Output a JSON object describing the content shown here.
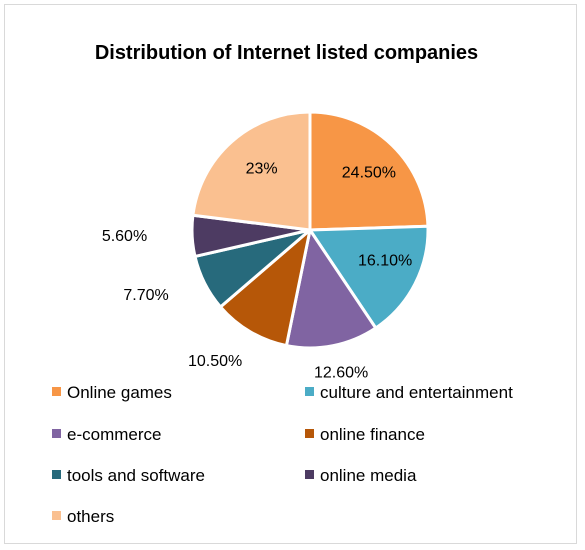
{
  "chart_data": {
    "type": "pie",
    "title": "Distribution of Internet listed companies",
    "slices": [
      {
        "name": "Online games",
        "value": 24.5,
        "label": "24.50%",
        "color": "#F79646"
      },
      {
        "name": "culture and entertainment",
        "value": 16.1,
        "label": "16.10%",
        "color": "#4BACC6"
      },
      {
        "name": "e-commerce",
        "value": 12.6,
        "label": "12.60%",
        "color": "#8064A2"
      },
      {
        "name": "online finance",
        "value": 10.5,
        "label": "10.50%",
        "color": "#B65708"
      },
      {
        "name": "tools and software",
        "value": 7.7,
        "label": "7.70%",
        "color": "#276A7C"
      },
      {
        "name": "online media",
        "value": 5.6,
        "label": "5.60%",
        "color": "#4D3B62"
      },
      {
        "name": "others",
        "value": 23,
        "label": "23%",
        "color": "#FAC090"
      }
    ],
    "legend_position": "bottom"
  }
}
